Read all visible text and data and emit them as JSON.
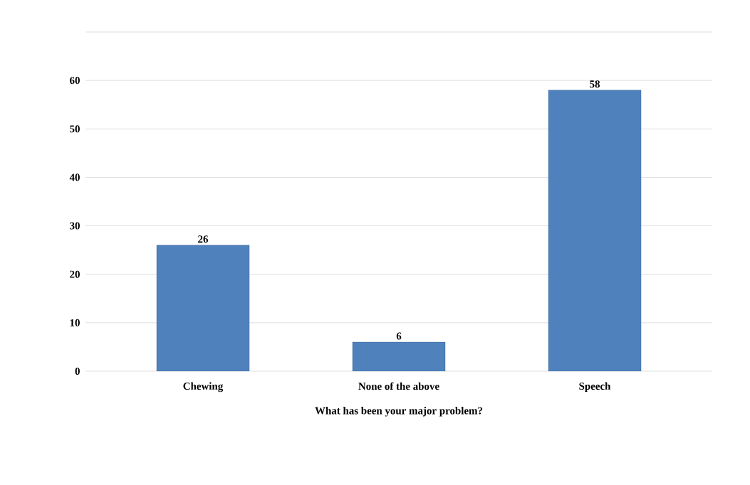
{
  "chart_data": {
    "type": "bar",
    "xlabel": "What has been your major problem?",
    "categories": [
      "Chewing",
      "None of the above",
      "Speech"
    ],
    "values": [
      26,
      6,
      58
    ],
    "color": "#4f81bd",
    "ylim": [
      0,
      70
    ],
    "yticks": [
      0,
      10,
      20,
      30,
      40,
      50,
      60,
      {
        "value": 70,
        "label": null
      }
    ],
    "grid": "y",
    "data_labels": true
  }
}
